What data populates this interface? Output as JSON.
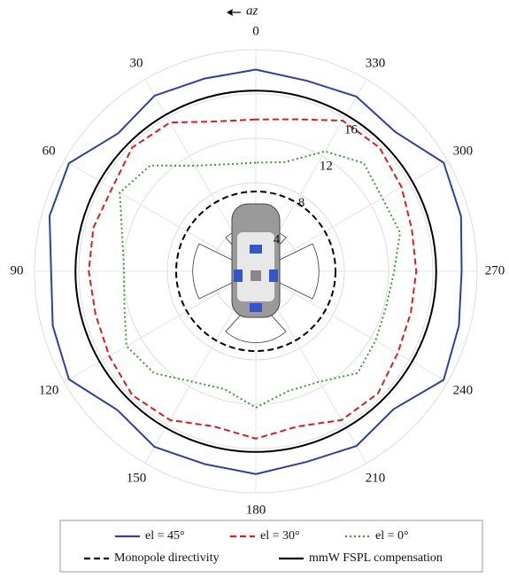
{
  "chart_data": {
    "type": "polar",
    "direction_label": "az",
    "theta": [
      0,
      15,
      30,
      45,
      60,
      75,
      90,
      105,
      120,
      135,
      150,
      165,
      180,
      195,
      210,
      225,
      240,
      255,
      270,
      285,
      300,
      315,
      330,
      345
    ],
    "thetaticks": [
      0,
      30,
      60,
      90,
      120,
      150,
      180,
      210,
      240,
      270,
      300,
      330
    ],
    "rlim": [
      0,
      20
    ],
    "rticks": [
      4,
      8,
      12,
      16
    ],
    "grid": true,
    "series": [
      {
        "name": "el = 45°",
        "color": "#2e3f9e",
        "dash": "solid",
        "values": [
          18.2,
          18.0,
          18.3,
          17.6,
          19.5,
          19.3,
          18.5,
          19.0,
          19.5,
          17.7,
          18.3,
          18.0,
          18.3,
          17.8,
          18.2,
          17.6,
          19.6,
          19.0,
          18.6,
          19.2,
          19.6,
          17.8,
          18.2,
          17.8
        ]
      },
      {
        "name": "el = 30°",
        "color": "#d62020",
        "dash": "dashed",
        "values": [
          13.7,
          14.0,
          15.5,
          15.8,
          15.0,
          15.2,
          15.1,
          15.0,
          15.3,
          15.8,
          15.5,
          14.5,
          15.1,
          14.5,
          15.5,
          15.6,
          14.8,
          14.5,
          14.5,
          14.6,
          15.2,
          15.8,
          15.7,
          14.2
        ]
      },
      {
        "name": "el = 0°",
        "color": "#3c9a30",
        "dash": "dotted",
        "values": [
          9.8,
          10.0,
          11.0,
          13.5,
          14.2,
          12.5,
          11.9,
          12.3,
          13.5,
          13.0,
          11.5,
          11.0,
          12.3,
          11.2,
          11.5,
          13.0,
          12.5,
          12.2,
          12.5,
          13.5,
          13.2,
          13.8,
          12.5,
          10.2
        ]
      }
    ],
    "reference_circles": [
      {
        "name": "Monopole directivity",
        "color": "#000000",
        "dash": "dashed",
        "radius": 7.2
      },
      {
        "name": "mmW FSPL compensation",
        "color": "#000000",
        "dash": "solid",
        "radius": 16.3
      }
    ]
  }
}
